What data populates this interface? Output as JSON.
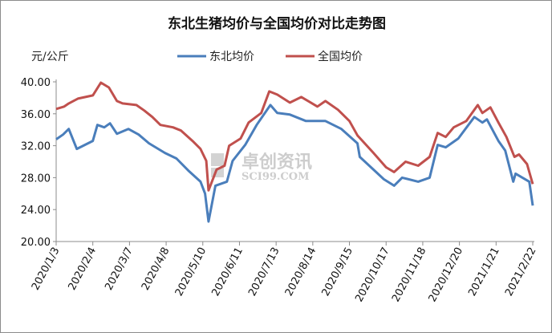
{
  "chart_data": {
    "type": "line",
    "title": "东北生猪均价与全国均价对比走势图",
    "ylabel": "元/公斤",
    "xlabel": "",
    "ylim": [
      20,
      40
    ],
    "yticks": [
      "20.00",
      "24.00",
      "28.00",
      "32.00",
      "36.00",
      "40.00"
    ],
    "xlim": [
      "2020-01-03",
      "2021-02-22"
    ],
    "xticks": [
      "2020/1/3",
      "2020/2/4",
      "2020/3/7",
      "2020/4/8",
      "2020/5/10",
      "2020/6/11",
      "2020/7/13",
      "2020/8/14",
      "2020/9/15",
      "2020/10/17",
      "2020/11/18",
      "2020/12/20",
      "2021/1/21",
      "2021/2/22"
    ],
    "grid": false,
    "legend": "top",
    "watermark": {
      "cn": "卓创资讯",
      "en": "SCI99.COM"
    },
    "series": [
      {
        "name": "东北均价",
        "color": "#4a7ebb",
        "x": [
          "2020-01-03",
          "2020-01-09",
          "2020-01-14",
          "2020-01-21",
          "2020-02-04",
          "2020-02-08",
          "2020-02-14",
          "2020-02-19",
          "2020-02-25",
          "2020-03-06",
          "2020-03-15",
          "2020-03-24",
          "2020-04-07",
          "2020-04-17",
          "2020-04-28",
          "2020-05-08",
          "2020-05-12",
          "2020-05-15",
          "2020-05-21",
          "2020-05-31",
          "2020-06-05",
          "2020-06-16",
          "2020-06-26",
          "2020-07-08",
          "2020-07-14",
          "2020-07-25",
          "2020-08-08",
          "2020-08-25",
          "2020-09-08",
          "2020-09-22",
          "2020-09-24",
          "2020-10-06",
          "2020-10-15",
          "2020-10-24",
          "2020-10-31",
          "2020-11-14",
          "2020-11-24",
          "2020-12-01",
          "2020-12-08",
          "2020-12-19",
          "2021-01-02",
          "2021-01-09",
          "2021-01-13",
          "2021-01-23",
          "2021-01-29",
          "2021-02-05",
          "2021-02-07",
          "2021-02-19",
          "2021-02-22"
        ],
        "y": [
          32.8,
          33.4,
          34.1,
          31.6,
          32.6,
          34.6,
          34.3,
          34.8,
          33.5,
          34.1,
          33.4,
          32.3,
          31.1,
          30.4,
          28.8,
          27.5,
          26.0,
          22.5,
          27.0,
          27.5,
          30.1,
          32.1,
          34.6,
          37.1,
          36.1,
          35.9,
          35.1,
          35.1,
          34.1,
          32.3,
          30.6,
          29.0,
          27.8,
          27.0,
          28.0,
          27.5,
          28.0,
          32.1,
          31.8,
          32.9,
          35.6,
          34.9,
          35.3,
          32.6,
          31.4,
          27.5,
          28.5,
          27.5,
          24.5
        ]
      },
      {
        "name": "全国均价",
        "color": "#c0504d",
        "x": [
          "2020-01-03",
          "2020-01-10",
          "2020-01-14",
          "2020-01-22",
          "2020-02-04",
          "2020-02-11",
          "2020-02-18",
          "2020-02-25",
          "2020-03-01",
          "2020-03-13",
          "2020-03-20",
          "2020-03-27",
          "2020-04-03",
          "2020-04-14",
          "2020-04-21",
          "2020-05-01",
          "2020-05-08",
          "2020-05-13",
          "2020-05-15",
          "2020-05-22",
          "2020-05-29",
          "2020-06-02",
          "2020-06-12",
          "2020-06-19",
          "2020-06-30",
          "2020-07-07",
          "2020-07-14",
          "2020-07-25",
          "2020-08-04",
          "2020-08-18",
          "2020-08-25",
          "2020-09-05",
          "2020-09-15",
          "2020-09-22",
          "2020-10-06",
          "2020-10-17",
          "2020-10-24",
          "2020-11-03",
          "2020-11-14",
          "2020-11-24",
          "2020-12-01",
          "2020-12-08",
          "2020-12-15",
          "2020-12-26",
          "2021-01-05",
          "2021-01-09",
          "2021-01-16",
          "2021-01-23",
          "2021-01-30",
          "2021-02-06",
          "2021-02-10",
          "2021-02-17",
          "2021-02-22"
        ],
        "y": [
          36.6,
          36.9,
          37.3,
          37.9,
          38.3,
          39.9,
          39.3,
          37.6,
          37.3,
          37.1,
          36.4,
          35.6,
          34.6,
          34.3,
          33.9,
          32.6,
          31.6,
          30.1,
          26.4,
          29.0,
          29.5,
          32.0,
          32.9,
          34.9,
          36.1,
          38.8,
          38.4,
          37.4,
          38.1,
          36.9,
          37.6,
          36.5,
          35.1,
          33.3,
          31.1,
          29.3,
          28.7,
          30.0,
          29.5,
          30.6,
          33.6,
          33.1,
          34.3,
          35.1,
          37.1,
          36.1,
          36.8,
          34.9,
          33.1,
          30.6,
          30.9,
          29.7,
          27.2
        ]
      }
    ]
  }
}
